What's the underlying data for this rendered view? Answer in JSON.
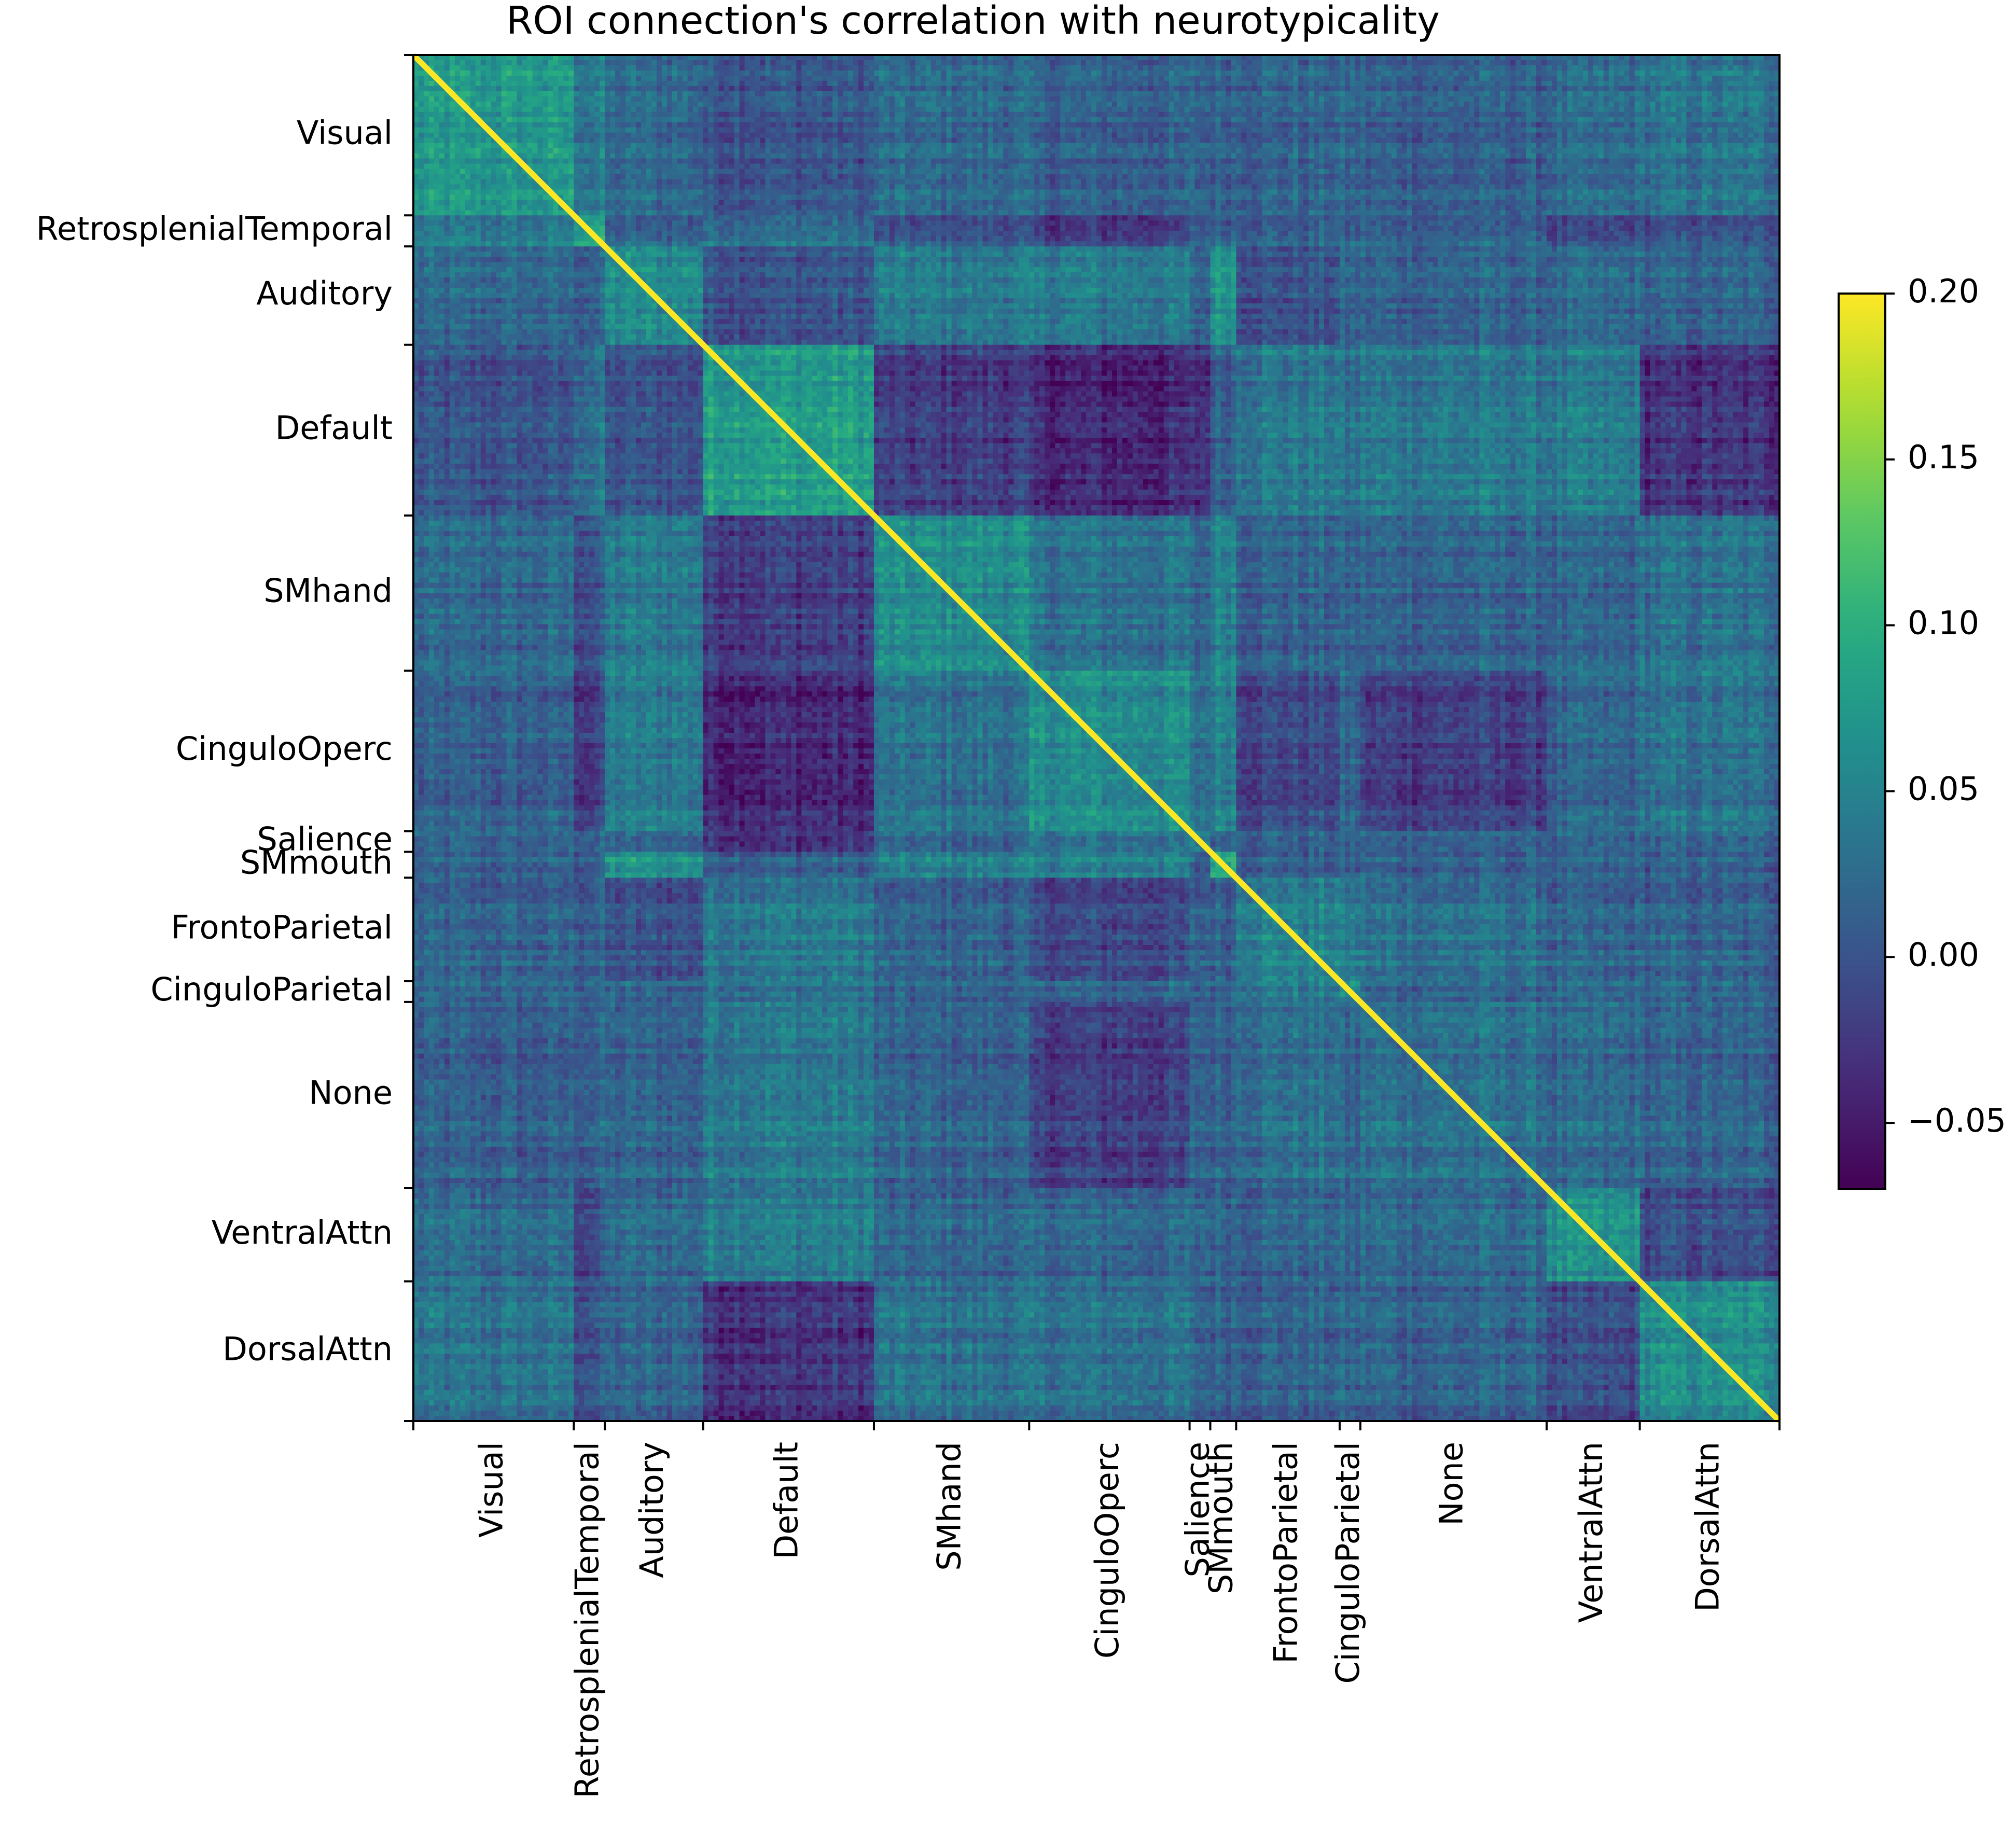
{
  "chart_data": {
    "type": "heatmap",
    "title": "ROI connection's correlation with neurotypicality",
    "xlabel": "",
    "ylabel": "",
    "colormap": "viridis",
    "vmin": -0.07,
    "vmax": 0.2,
    "colorbar_ticks": [
      {
        "value": 0.2,
        "label": "0.20"
      },
      {
        "value": 0.15,
        "label": "0.15"
      },
      {
        "value": 0.1,
        "label": "0.10"
      },
      {
        "value": 0.05,
        "label": "0.05"
      },
      {
        "value": 0.0,
        "label": "0.00"
      },
      {
        "value": -0.05,
        "label": "−0.05"
      }
    ],
    "diagonal_value": 0.2,
    "matrix_size": 264,
    "grid": false,
    "networks": [
      {
        "name": "Visual",
        "start": 0,
        "end": 31,
        "within_mean": 0.07
      },
      {
        "name": "RetrosplenialTemporal",
        "start": 31,
        "end": 37,
        "within_mean": 0.09
      },
      {
        "name": "Auditory",
        "start": 37,
        "end": 56,
        "within_mean": 0.06
      },
      {
        "name": "Default",
        "start": 56,
        "end": 89,
        "within_mean": 0.08
      },
      {
        "name": "SMhand",
        "start": 89,
        "end": 119,
        "within_mean": 0.06
      },
      {
        "name": "CinguloOperc",
        "start": 119,
        "end": 150,
        "within_mean": 0.06
      },
      {
        "name": "Salience",
        "start": 150,
        "end": 154,
        "within_mean": 0.05
      },
      {
        "name": "SMmouth",
        "start": 154,
        "end": 159,
        "within_mean": 0.1
      },
      {
        "name": "FrontoParietal",
        "start": 159,
        "end": 179,
        "within_mean": 0.05
      },
      {
        "name": "CinguloParietal",
        "start": 179,
        "end": 183,
        "within_mean": 0.05
      },
      {
        "name": "None",
        "start": 183,
        "end": 219,
        "within_mean": 0.03
      },
      {
        "name": "VentralAttn",
        "start": 219,
        "end": 237,
        "within_mean": 0.06
      },
      {
        "name": "DorsalAttn",
        "start": 237,
        "end": 264,
        "within_mean": 0.06
      }
    ],
    "between_block_means": [
      {
        "a": "Visual",
        "b": "RetrosplenialTemporal",
        "value": 0.04
      },
      {
        "a": "Visual",
        "b": "Auditory",
        "value": 0.02
      },
      {
        "a": "Visual",
        "b": "Default",
        "value": 0.0
      },
      {
        "a": "Visual",
        "b": "SMhand",
        "value": 0.02
      },
      {
        "a": "Visual",
        "b": "CinguloOperc",
        "value": 0.01
      },
      {
        "a": "Visual",
        "b": "None",
        "value": 0.01
      },
      {
        "a": "Visual",
        "b": "VentralAttn",
        "value": 0.02
      },
      {
        "a": "Visual",
        "b": "DorsalAttn",
        "value": 0.03
      },
      {
        "a": "RetrosplenialTemporal",
        "b": "Default",
        "value": 0.03
      },
      {
        "a": "RetrosplenialTemporal",
        "b": "SMhand",
        "value": 0.0
      },
      {
        "a": "RetrosplenialTemporal",
        "b": "CinguloOperc",
        "value": -0.02
      },
      {
        "a": "RetrosplenialTemporal",
        "b": "VentralAttn",
        "value": -0.01
      },
      {
        "a": "RetrosplenialTemporal",
        "b": "DorsalAttn",
        "value": 0.0
      },
      {
        "a": "Auditory",
        "b": "Default",
        "value": 0.0
      },
      {
        "a": "Auditory",
        "b": "SMhand",
        "value": 0.04
      },
      {
        "a": "Auditory",
        "b": "CinguloOperc",
        "value": 0.04
      },
      {
        "a": "Auditory",
        "b": "SMmouth",
        "value": 0.07
      },
      {
        "a": "Auditory",
        "b": "FrontoParietal",
        "value": 0.0
      },
      {
        "a": "Auditory",
        "b": "VentralAttn",
        "value": 0.02
      },
      {
        "a": "Default",
        "b": "SMhand",
        "value": -0.02
      },
      {
        "a": "Default",
        "b": "CinguloOperc",
        "value": -0.04
      },
      {
        "a": "Default",
        "b": "Salience",
        "value": -0.03
      },
      {
        "a": "Default",
        "b": "FrontoParietal",
        "value": 0.04
      },
      {
        "a": "Default",
        "b": "CinguloParietal",
        "value": 0.03
      },
      {
        "a": "Default",
        "b": "None",
        "value": 0.04
      },
      {
        "a": "Default",
        "b": "VentralAttn",
        "value": 0.04
      },
      {
        "a": "Default",
        "b": "DorsalAttn",
        "value": -0.03
      },
      {
        "a": "SMhand",
        "b": "CinguloOperc",
        "value": 0.03
      },
      {
        "a": "SMhand",
        "b": "SMmouth",
        "value": 0.05
      },
      {
        "a": "SMhand",
        "b": "DorsalAttn",
        "value": 0.03
      },
      {
        "a": "CinguloOperc",
        "b": "Salience",
        "value": 0.03
      },
      {
        "a": "CinguloOperc",
        "b": "SMmouth",
        "value": 0.05
      },
      {
        "a": "CinguloOperc",
        "b": "FrontoParietal",
        "value": -0.01
      },
      {
        "a": "CinguloOperc",
        "b": "None",
        "value": -0.02
      },
      {
        "a": "CinguloOperc",
        "b": "DorsalAttn",
        "value": 0.03
      },
      {
        "a": "FrontoParietal",
        "b": "CinguloParietal",
        "value": 0.04
      },
      {
        "a": "FrontoParietal",
        "b": "None",
        "value": 0.03
      },
      {
        "a": "None",
        "b": "VentralAttn",
        "value": 0.02
      },
      {
        "a": "VentralAttn",
        "b": "DorsalAttn",
        "value": -0.01
      }
    ]
  }
}
